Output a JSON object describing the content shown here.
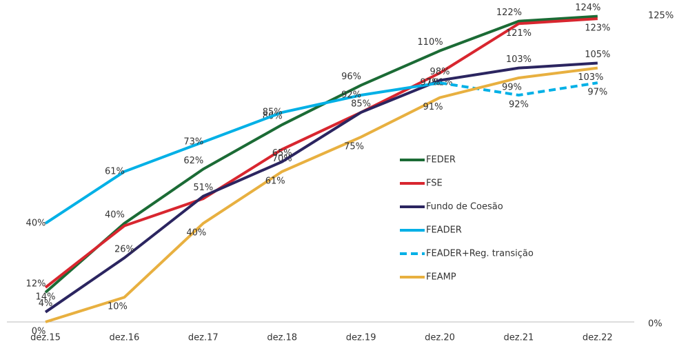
{
  "chart_data": {
    "type": "line",
    "categories": [
      "dez.15",
      "dez.16",
      "dez.17",
      "dez.18",
      "dez.19",
      "dez.20",
      "dez.21",
      "dez.22"
    ],
    "ylim": [
      0,
      125
    ],
    "yticks": [
      {
        "value": 0,
        "label": "0%"
      },
      {
        "value": 125,
        "label": "125%"
      }
    ],
    "series": [
      {
        "name": "FEDER",
        "color": "#1b6b35",
        "values": [
          12,
          40,
          62,
          80,
          96,
          110,
          122,
          124
        ],
        "value_labels": [
          "12%",
          "40%",
          "62%",
          "80%",
          "96%",
          "110%",
          "122%",
          "124%"
        ]
      },
      {
        "name": "FSE",
        "color": "#d8262f",
        "values": [
          14,
          39,
          50,
          70,
          85,
          101,
          121,
          123
        ],
        "value_labels": [
          "14%",
          null,
          null,
          "70%",
          null,
          "101%",
          "121%",
          "123%"
        ]
      },
      {
        "name": "Fundo de Coesão",
        "color": "#2b2560",
        "values": [
          4,
          26,
          51,
          65,
          85,
          98,
          103,
          105
        ],
        "value_labels": [
          "4%",
          "26%",
          "51%",
          "65%",
          "85%",
          "98%",
          "103%",
          "105%"
        ]
      },
      {
        "name": "FEADER",
        "color": "#00b0e6",
        "values": [
          40,
          61,
          73,
          85,
          92,
          97,
          null,
          null
        ],
        "value_labels": [
          "40%",
          "61%",
          "73%",
          "85%",
          "92%",
          "97%",
          null,
          null
        ]
      },
      {
        "name": "FEADER+Reg. transição",
        "color": "#00b0e6",
        "dash": true,
        "values": [
          null,
          null,
          null,
          null,
          null,
          97,
          92,
          97
        ],
        "value_labels": [
          null,
          null,
          null,
          null,
          null,
          null,
          "92%",
          "97%"
        ]
      },
      {
        "name": "FEAMP",
        "color": "#e8b040",
        "values": [
          0,
          10,
          40,
          61,
          75,
          91,
          99,
          103
        ],
        "value_labels": [
          "0%",
          "10%",
          "40%",
          "61%",
          "75%",
          "91%",
          "99%",
          "103%"
        ]
      }
    ]
  }
}
